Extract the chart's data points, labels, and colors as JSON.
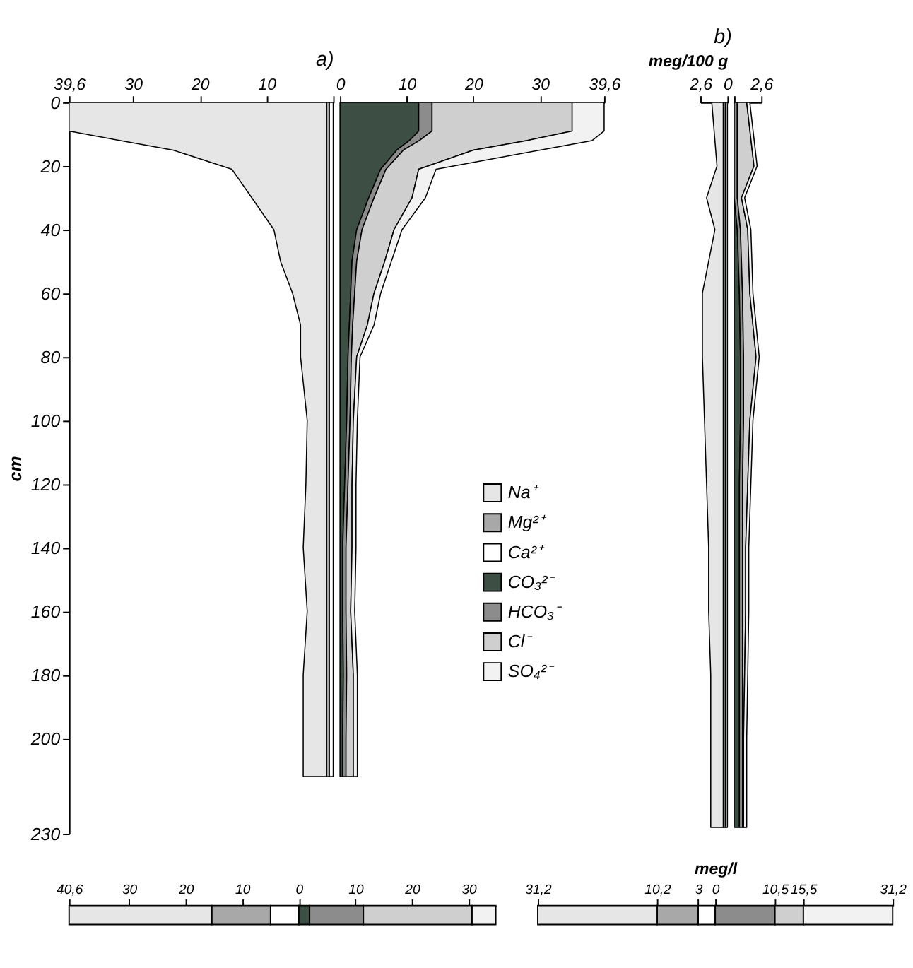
{
  "chart_data": [
    {
      "type": "area",
      "title": "a)",
      "ylabel": "cm",
      "orientation": "horizontal",
      "stacked": true,
      "legend": "right",
      "grid": false,
      "x": [
        0,
        9,
        12,
        15,
        21,
        30,
        40,
        50,
        60,
        70,
        80,
        100,
        120,
        140,
        160,
        180,
        200,
        212
      ],
      "xlim": [
        -39.6,
        0
      ],
      "xticks": [
        {
          "value": -39.6,
          "label": "39,6"
        },
        {
          "value": -30,
          "label": "30"
        },
        {
          "value": -20,
          "label": "20"
        },
        {
          "value": -10,
          "label": "10"
        },
        {
          "value": 0,
          "label": null
        }
      ],
      "ylim": [
        230,
        0
      ],
      "yticks": [
        0,
        20,
        40,
        60,
        80,
        100,
        120,
        140,
        160,
        180,
        200,
        230
      ],
      "series": [
        {
          "name": "Ca²⁺",
          "color": "#ffffff",
          "values": [
            -0.6,
            -0.6,
            -0.6,
            -0.6,
            -0.6,
            -0.6,
            -0.6,
            -0.6,
            -0.6,
            -0.6,
            -0.6,
            -0.6,
            -0.6,
            -0.6,
            -0.6,
            -0.6,
            -0.6,
            -0.6
          ]
        },
        {
          "name": "Mg²⁺",
          "color": "#a8a8a8",
          "values": [
            -0.4,
            -0.4,
            -0.4,
            -0.4,
            -0.4,
            -0.4,
            -0.4,
            -0.4,
            -0.4,
            -0.4,
            -0.4,
            -0.4,
            -0.4,
            -0.4,
            -0.4,
            -0.4,
            -0.4,
            -0.4
          ]
        },
        {
          "name": "Na⁺",
          "color": "#e6e6e6",
          "values": [
            -38.6,
            -38.6,
            -30.9,
            -23,
            -14.2,
            -11.2,
            -7.9,
            -6.9,
            -5.1,
            -3.9,
            -3.9,
            -2.9,
            -3.1,
            -3.5,
            -2.9,
            -3.5,
            -3.5,
            -3.5
          ]
        }
      ]
    },
    {
      "type": "area",
      "orientation": "horizontal",
      "stacked": true,
      "legend": "right",
      "tick_labels": "x",
      "grid": false,
      "x": [
        0,
        9,
        12,
        15,
        21,
        30,
        40,
        50,
        60,
        70,
        80,
        100,
        120,
        140,
        160,
        180,
        200,
        212
      ],
      "xlim": [
        0,
        39.6
      ],
      "xticks": [
        0,
        10,
        20,
        30,
        {
          "value": 39.6,
          "label": "39,6"
        }
      ],
      "ylim": [
        230,
        0
      ],
      "series": [
        {
          "name": "CO₃²⁻",
          "color": "#3d4f45",
          "values": [
            11.8,
            11.8,
            10.4,
            8.5,
            6.1,
            4.3,
            2.5,
            1.8,
            1.6,
            1.4,
            1.2,
            1.0,
            0.7,
            0.4,
            0.4,
            0.5,
            0.4,
            0.4
          ]
        },
        {
          "name": "HCO₃⁻",
          "color": "#8c8c8c",
          "values": [
            2.0,
            2.0,
            1.5,
            1.0,
            0.8,
            0.8,
            0.8,
            0.7,
            0.6,
            0.5,
            0.5,
            0.5,
            0.5,
            0.5,
            0.5,
            0.5,
            0.5,
            0.5
          ]
        },
        {
          "name": "Cl⁻",
          "color": "#cfcfcf",
          "values": [
            21.0,
            21.0,
            16.1,
            10.5,
            4.9,
            5.7,
            4.8,
            4.2,
            2.9,
            2.2,
            0.8,
            0.5,
            0.6,
            0.9,
            0.7,
            1.0,
            1.1,
            1.1
          ]
        },
        {
          "name": "SO₄²⁻",
          "color": "#f2f2f2",
          "values": [
            4.8,
            4.8,
            9.8,
            10,
            2.6,
            2.0,
            1.2,
            1.0,
            1.0,
            1.0,
            0.5,
            0.6,
            0.6,
            0.6,
            0.6,
            0.6,
            0.6,
            0.6
          ]
        }
      ]
    },
    {
      "type": "area",
      "title": "b)",
      "xlabel": "meg/100 g",
      "orientation": "horizontal",
      "stacked": true,
      "tick_labels": "x",
      "grid": false,
      "x": [
        0,
        20,
        30,
        40,
        60,
        80,
        100,
        120,
        140,
        160,
        180,
        200,
        228
      ],
      "xlim": [
        -2.6,
        0
      ],
      "xticks": [
        {
          "value": -2.6,
          "label": "2,6"
        },
        0
      ],
      "ylim": [
        230,
        0
      ],
      "series": [
        {
          "color": "#ffffff",
          "values": [
            -0.2,
            -0.2,
            -0.2,
            -0.2,
            -0.2,
            -0.2,
            -0.2,
            -0.2,
            -0.2,
            -0.2,
            -0.2,
            -0.2,
            -0.2
          ]
        },
        {
          "color": "#a8a8a8",
          "values": [
            -0.2,
            -0.2,
            -0.2,
            -0.2,
            -0.2,
            -0.2,
            -0.2,
            -0.2,
            -0.2,
            -0.2,
            -0.2,
            -0.2,
            -0.2
          ]
        },
        {
          "color": "#e6e6e6",
          "values": [
            -1.1,
            -0.6,
            -1.6,
            -0.8,
            -2.0,
            -2.0,
            -1.8,
            -1.6,
            -1.4,
            -1.4,
            -1.2,
            -1.2,
            -1.2
          ]
        }
      ]
    },
    {
      "type": "area",
      "orientation": "horizontal",
      "stacked": true,
      "tick_labels": "x",
      "grid": false,
      "x": [
        0,
        20,
        30,
        40,
        60,
        80,
        100,
        120,
        140,
        160,
        180,
        200,
        228
      ],
      "xlim": [
        0,
        2.6
      ],
      "xticks": [
        {
          "value": 0,
          "label": null
        },
        {
          "value": 2.6,
          "label": "2,6"
        }
      ],
      "ylim": [
        230,
        0
      ],
      "series": [
        {
          "color": "#3d4f45",
          "values": [
            0,
            0,
            0,
            0.3,
            0.5,
            0.6,
            0.6,
            0.5,
            0.5,
            0.5,
            0.5,
            0.5,
            0.5
          ]
        },
        {
          "color": "#8c8c8c",
          "values": [
            0.3,
            0.3,
            0.3,
            0.3,
            0.3,
            0.3,
            0.3,
            0.3,
            0.3,
            0.3,
            0.3,
            0.3,
            0.3
          ]
        },
        {
          "color": "#cfcfcf",
          "values": [
            0.9,
            1.6,
            0.4,
            0.7,
            0.7,
            1.2,
            0.6,
            0.5,
            0.3,
            0.3,
            0.2,
            0.1,
            0.1
          ]
        },
        {
          "color": "#f2f2f2",
          "values": [
            0.3,
            0.3,
            0.3,
            0.3,
            0.3,
            0.3,
            0.3,
            0.3,
            0.3,
            0.3,
            0.3,
            0.3,
            0.3
          ]
        }
      ]
    },
    {
      "type": "bar",
      "orientation": "horizontal",
      "stacked": true,
      "tick_labels": "x",
      "grid": false,
      "categories": [
        null
      ],
      "xlim": [
        -40.6,
        34.8
      ],
      "xticks": [
        {
          "value": -40.6,
          "label": "40,6"
        },
        {
          "value": -30,
          "label": "30"
        },
        {
          "value": -20,
          "label": "20"
        },
        {
          "value": -10,
          "label": "10"
        },
        0,
        10,
        20,
        30
      ],
      "series": [
        {
          "color": "#ffffff",
          "values": [
            -5.0
          ]
        },
        {
          "color": "#a8a8a8",
          "values": [
            -10.4
          ]
        },
        {
          "color": "#e6e6e6",
          "values": [
            -25.2
          ]
        },
        {
          "color": "#3d4f45",
          "values": [
            1.9
          ]
        },
        {
          "color": "#8c8c8c",
          "values": [
            9.5
          ]
        },
        {
          "color": "#cfcfcf",
          "values": [
            19.2
          ]
        },
        {
          "color": "#f2f2f2",
          "values": [
            4.2
          ]
        }
      ]
    },
    {
      "type": "bar",
      "xlabel": "meg/l",
      "orientation": "horizontal",
      "stacked": true,
      "tick_labels": "x",
      "grid": false,
      "categories": [
        null
      ],
      "xlim": [
        -31.2,
        31.2
      ],
      "xticks": [
        {
          "value": -31.2,
          "label": "31,2"
        },
        {
          "value": -10.2,
          "label": "10,2"
        },
        {
          "value": -3,
          "label": "3"
        },
        0,
        {
          "value": 10.5,
          "label": "10,5"
        },
        {
          "value": 15.5,
          "label": "15,5"
        },
        {
          "value": 31.2,
          "label": "31,2"
        }
      ],
      "series": [
        {
          "color": "#ffffff",
          "values": [
            -3
          ]
        },
        {
          "color": "#a8a8a8",
          "values": [
            -7.2
          ]
        },
        {
          "color": "#e6e6e6",
          "values": [
            -21
          ]
        },
        {
          "color": "#8c8c8c",
          "values": [
            10.5
          ]
        },
        {
          "color": "#cfcfcf",
          "values": [
            5
          ]
        },
        {
          "color": "#f2f2f2",
          "values": [
            15.7
          ]
        }
      ]
    }
  ]
}
